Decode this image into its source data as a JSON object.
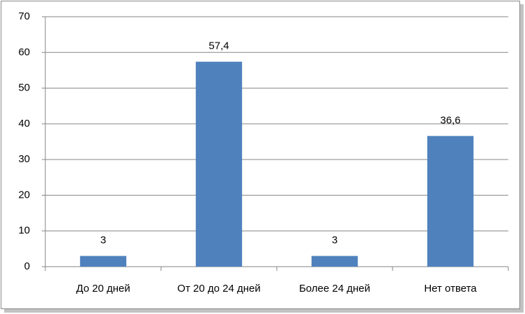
{
  "chart_data": {
    "type": "bar",
    "categories": [
      "До 20 дней",
      "От 20 до 24 дней",
      "Более 24 дней",
      "Нет ответа"
    ],
    "values": [
      3,
      57.4,
      3,
      36.6
    ],
    "value_labels": [
      "3",
      "57,4",
      "3",
      "36,6"
    ],
    "color": "#4f81bd",
    "ylim": [
      0,
      70
    ],
    "yticks": [
      0,
      10,
      20,
      30,
      40,
      50,
      60,
      70
    ],
    "grid": true
  }
}
